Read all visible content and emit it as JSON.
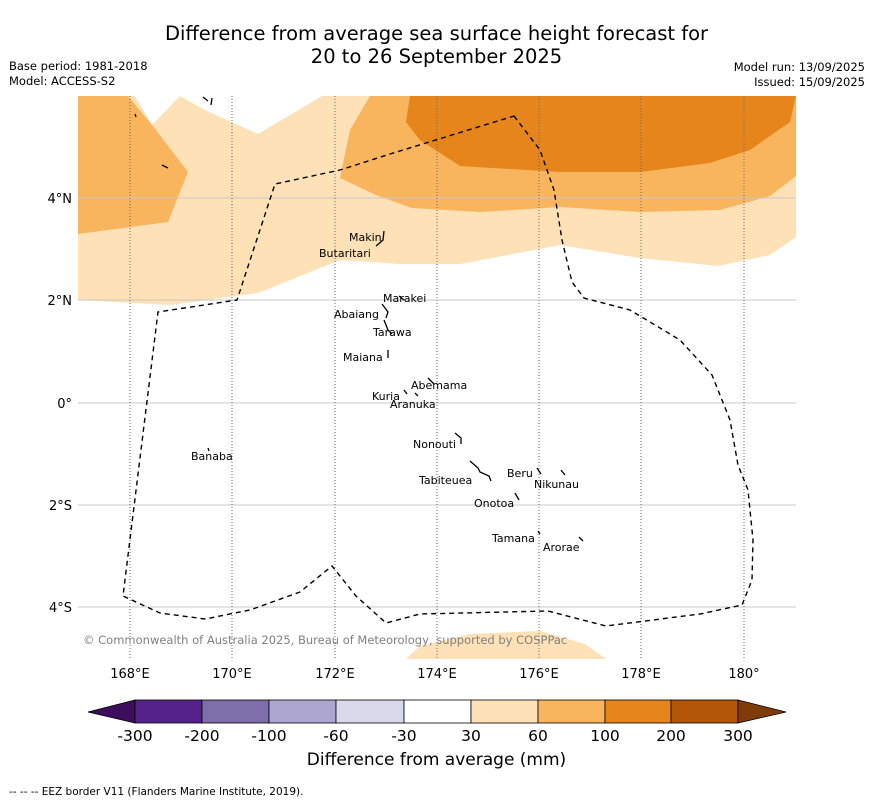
{
  "header": {
    "title_line1": "Difference from average sea surface height forecast for",
    "title_line2": "20 to 26 September 2025",
    "base_period": "Base period: 1981-2018",
    "model": "Model: ACCESS-S2",
    "model_run": "Model run: 13/09/2025",
    "issued": "Issued: 15/09/2025"
  },
  "map": {
    "lon_range": [
      167,
      181
    ],
    "lat_range": [
      -5.0,
      5.9
    ],
    "lon_ticks": [
      "168°E",
      "170°E",
      "172°E",
      "174°E",
      "176°E",
      "178°E",
      "180°"
    ],
    "lat_ticks": [
      "4°N",
      "2°N",
      "0°",
      "2°S",
      "4°S"
    ],
    "copyright": "© Commonwealth of Australia 2025, Bureau of Meteorology, supported by COSPPac",
    "islands": [
      {
        "name": "Makin"
      },
      {
        "name": "Butaritari"
      },
      {
        "name": "Marakei"
      },
      {
        "name": "Abaiang"
      },
      {
        "name": "Tarawa"
      },
      {
        "name": "Maiana"
      },
      {
        "name": "Abemama"
      },
      {
        "name": "Kuria"
      },
      {
        "name": "Aranuka"
      },
      {
        "name": "Banaba"
      },
      {
        "name": "Nonouti"
      },
      {
        "name": "Beru"
      },
      {
        "name": "Nikunau"
      },
      {
        "name": "Tabiteuea"
      },
      {
        "name": "Onotoa"
      },
      {
        "name": "Tamana"
      },
      {
        "name": "Arorae"
      }
    ],
    "fill_colors": {
      "30_60": "#fee1b7",
      "60_100": "#f9b45e",
      "100_200": "#e5851c",
      "200_300": "#b35508"
    }
  },
  "colorbar": {
    "label": "Difference from average (mm)",
    "ticks": [
      "-300",
      "-200",
      "-100",
      "-60",
      "-30",
      "30",
      "60",
      "100",
      "200",
      "300"
    ],
    "colors": [
      "#3d0e5c",
      "#54238a",
      "#7e6ea9",
      "#ada6d0",
      "#d9d9ec",
      "#ffffff",
      "#fee1b7",
      "#f9b45e",
      "#e5851c",
      "#b35508",
      "#7f3b08"
    ]
  },
  "footnote": "-- -- -- EEZ border V11 (Flanders Marine Institute, 2019)."
}
